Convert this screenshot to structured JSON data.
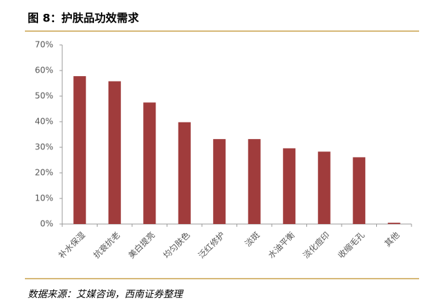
{
  "chart_data": {
    "type": "bar",
    "title": "图 8：护肤品功效需求",
    "source": "数据来源：艾媒咨询，西南证券整理",
    "categories": [
      "补水保湿",
      "抗衰抗老",
      "美白提亮",
      "均匀肤色",
      "泛红修护",
      "淡斑",
      "水油平衡",
      "淡化痘印",
      "收缩毛孔",
      "其他"
    ],
    "values": [
      57.8,
      55.8,
      47.5,
      39.8,
      33.2,
      33.2,
      29.6,
      28.3,
      26.1,
      0.5
    ],
    "color": "#a03c3c",
    "ylim": [
      0,
      70
    ],
    "yticks": [
      {
        "value": 0,
        "label": "0%"
      },
      {
        "value": 10,
        "label": "10%"
      },
      {
        "value": 20,
        "label": "20%"
      },
      {
        "value": 30,
        "label": "30%"
      },
      {
        "value": 40,
        "label": "40%"
      },
      {
        "value": 50,
        "label": "50%"
      },
      {
        "value": 60,
        "label": "60%"
      },
      {
        "value": 70,
        "label": "70%"
      }
    ],
    "grid": false
  }
}
